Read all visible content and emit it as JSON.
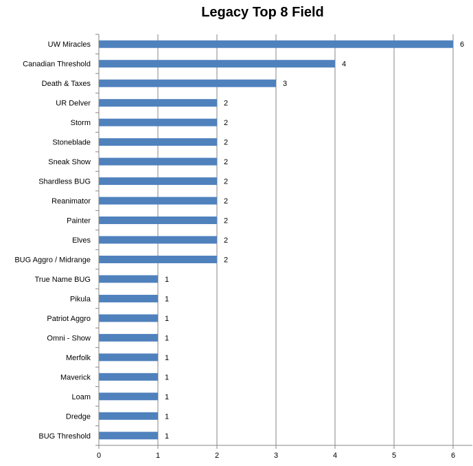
{
  "chart_data": {
    "type": "bar",
    "orientation": "horizontal",
    "title": "Legacy Top 8 Field",
    "xlabel": "",
    "ylabel": "",
    "xlim": [
      0,
      6
    ],
    "xticks": [
      0,
      1,
      2,
      3,
      4,
      5,
      6
    ],
    "grid": "vertical-major",
    "legend": "none",
    "bar_color": "#4F81BD",
    "categories": [
      "UW Miracles",
      "Canadian Threshold",
      "Death & Taxes",
      "UR Delver",
      "Storm",
      "Stoneblade",
      "Sneak Show",
      "Shardless BUG",
      "Reanimator",
      "Painter",
      "Elves",
      "BUG Aggro / Midrange",
      "True Name BUG",
      "Pikula",
      "Patriot Aggro",
      "Omni - Show",
      "Merfolk",
      "Maverick",
      "Loam",
      "Dredge",
      "BUG Threshold"
    ],
    "values": [
      6,
      4,
      3,
      2,
      2,
      2,
      2,
      2,
      2,
      2,
      2,
      2,
      1,
      1,
      1,
      1,
      1,
      1,
      1,
      1,
      1
    ]
  }
}
